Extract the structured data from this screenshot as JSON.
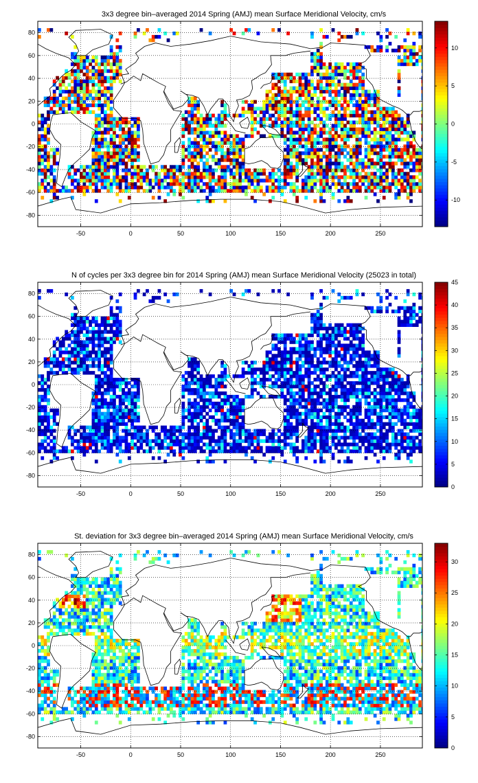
{
  "chart_data": [
    {
      "type": "heatmap",
      "title": "3x3 degree bin–averaged 2014 Spring (AMJ) mean Surface Meridional Velocity, cm/s",
      "xlim": [
        -93,
        292
      ],
      "ylim": [
        -90,
        90
      ],
      "xticks": [
        -50,
        0,
        50,
        100,
        150,
        200,
        250
      ],
      "yticks": [
        80,
        60,
        40,
        20,
        0,
        -20,
        -40,
        -60,
        -80
      ],
      "grid": "dotted",
      "bin_size_deg": 3,
      "colormap": "jet",
      "clim": [
        -13.5,
        13.5
      ],
      "colorbar_ticks": [
        10,
        5,
        0,
        -5,
        -10
      ],
      "field_kind": "velocity"
    },
    {
      "type": "heatmap",
      "title": "N of cycles per 3x3 degree bin for 2014 Spring (AMJ) mean Surface Meridional Velocity (25023 in total)",
      "xlim": [
        -93,
        292
      ],
      "ylim": [
        -90,
        90
      ],
      "xticks": [
        -50,
        0,
        50,
        100,
        150,
        200,
        250
      ],
      "yticks": [
        80,
        60,
        40,
        20,
        0,
        -20,
        -40,
        -60,
        -80
      ],
      "grid": "dotted",
      "bin_size_deg": 3,
      "colormap": "jet",
      "clim": [
        0,
        45
      ],
      "colorbar_ticks": [
        45,
        40,
        35,
        30,
        25,
        20,
        15,
        10,
        5,
        0
      ],
      "field_kind": "count"
    },
    {
      "type": "heatmap",
      "title": "St. deviation for 3x3 degree bin–averaged 2014 Spring (AMJ) mean Surface Meridional Velocity, cm/s",
      "xlim": [
        -93,
        292
      ],
      "ylim": [
        -90,
        90
      ],
      "xticks": [
        -50,
        0,
        50,
        100,
        150,
        200,
        250
      ],
      "yticks": [
        80,
        60,
        40,
        20,
        0,
        -20,
        -40,
        -60,
        -80
      ],
      "grid": "dotted",
      "bin_size_deg": 3,
      "colormap": "jet",
      "clim": [
        0,
        33
      ],
      "colorbar_ticks": [
        30,
        25,
        20,
        15,
        10,
        5,
        0
      ],
      "field_kind": "stdev"
    }
  ]
}
